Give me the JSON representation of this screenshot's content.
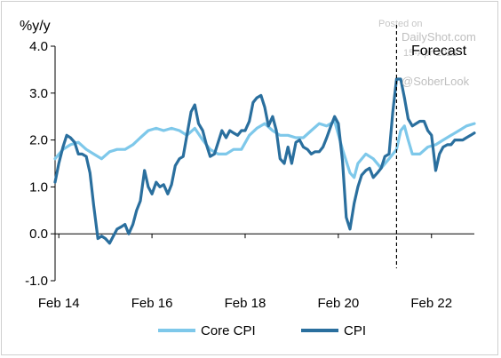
{
  "chart_data": {
    "type": "line",
    "ylabel": "%y/y",
    "ylim": [
      -1.0,
      4.0
    ],
    "yticks": [
      "4.0",
      "3.0",
      "2.0",
      "1.0",
      "0.0",
      "-1.0"
    ],
    "xlim": [
      2014.0,
      2023.0
    ],
    "xticks": [
      {
        "label": "Feb 14",
        "x": 2014.08
      },
      {
        "label": "Feb 16",
        "x": 2016.08
      },
      {
        "label": "Feb 18",
        "x": 2018.08
      },
      {
        "label": "Feb 20",
        "x": 2020.08
      },
      {
        "label": "Feb 22",
        "x": 2022.08
      }
    ],
    "forecast_start": 2021.33,
    "annotations": {
      "forecast": "Forecast",
      "watermark_line1": "Posted on",
      "watermark_line2": "DailyShot.com",
      "watermark_line3": "15-Apr-2021",
      "watermark_line4": "@SoberLook"
    },
    "colors": {
      "core_cpi": "#7ec8ea",
      "cpi": "#2a6f9e",
      "axis": "#000000"
    },
    "series": [
      {
        "name": "Core CPI",
        "x": [
          2014.0,
          2014.17,
          2014.33,
          2014.5,
          2014.67,
          2014.83,
          2015.0,
          2015.17,
          2015.33,
          2015.5,
          2015.67,
          2015.83,
          2016.0,
          2016.17,
          2016.33,
          2016.5,
          2016.67,
          2016.83,
          2017.0,
          2017.17,
          2017.33,
          2017.5,
          2017.67,
          2017.83,
          2018.0,
          2018.17,
          2018.33,
          2018.5,
          2018.67,
          2018.83,
          2019.0,
          2019.17,
          2019.33,
          2019.5,
          2019.67,
          2019.83,
          2020.0,
          2020.17,
          2020.33,
          2020.42,
          2020.5,
          2020.67,
          2020.83,
          2021.0,
          2021.17,
          2021.33,
          2021.42,
          2021.5,
          2021.58,
          2021.67,
          2021.83,
          2022.0,
          2022.17,
          2022.33,
          2022.5,
          2022.67,
          2022.83,
          2023.0
        ],
        "values": [
          1.6,
          1.8,
          1.9,
          1.95,
          1.8,
          1.7,
          1.6,
          1.75,
          1.8,
          1.8,
          1.9,
          2.05,
          2.2,
          2.25,
          2.2,
          2.25,
          2.2,
          2.1,
          2.25,
          2.0,
          1.8,
          1.7,
          1.7,
          1.8,
          1.8,
          2.1,
          2.25,
          2.35,
          2.2,
          2.1,
          2.1,
          2.05,
          2.05,
          2.2,
          2.35,
          2.3,
          2.4,
          1.8,
          1.3,
          1.2,
          1.5,
          1.7,
          1.6,
          1.4,
          1.6,
          1.8,
          2.2,
          2.3,
          2.0,
          1.7,
          1.7,
          1.85,
          1.9,
          2.0,
          2.1,
          2.2,
          2.3,
          2.35
        ]
      },
      {
        "name": "CPI",
        "x": [
          2014.0,
          2014.08,
          2014.17,
          2014.25,
          2014.33,
          2014.42,
          2014.5,
          2014.58,
          2014.67,
          2014.75,
          2014.83,
          2014.92,
          2015.0,
          2015.08,
          2015.17,
          2015.25,
          2015.33,
          2015.42,
          2015.5,
          2015.58,
          2015.67,
          2015.75,
          2015.83,
          2015.92,
          2016.0,
          2016.08,
          2016.17,
          2016.25,
          2016.33,
          2016.42,
          2016.5,
          2016.58,
          2016.67,
          2016.75,
          2016.83,
          2016.92,
          2017.0,
          2017.08,
          2017.17,
          2017.25,
          2017.33,
          2017.42,
          2017.5,
          2017.58,
          2017.67,
          2017.75,
          2017.83,
          2017.92,
          2018.0,
          2018.08,
          2018.17,
          2018.25,
          2018.33,
          2018.42,
          2018.5,
          2018.58,
          2018.67,
          2018.75,
          2018.83,
          2018.92,
          2019.0,
          2019.08,
          2019.17,
          2019.25,
          2019.33,
          2019.42,
          2019.5,
          2019.58,
          2019.67,
          2019.75,
          2019.83,
          2019.92,
          2020.0,
          2020.08,
          2020.17,
          2020.25,
          2020.33,
          2020.42,
          2020.5,
          2020.58,
          2020.67,
          2020.75,
          2020.83,
          2020.92,
          2021.0,
          2021.08,
          2021.17,
          2021.25,
          2021.33,
          2021.42,
          2021.5,
          2021.58,
          2021.67,
          2021.75,
          2021.83,
          2021.92,
          2022.0,
          2022.08,
          2022.17,
          2022.25,
          2022.33,
          2022.42,
          2022.5,
          2022.58,
          2022.67,
          2022.75,
          2022.83,
          2022.92,
          2023.0
        ],
        "values": [
          1.1,
          1.5,
          1.85,
          2.1,
          2.05,
          1.95,
          1.7,
          1.7,
          1.65,
          1.3,
          0.6,
          -0.1,
          -0.05,
          -0.1,
          -0.2,
          -0.05,
          0.1,
          0.15,
          0.2,
          0.0,
          0.2,
          0.5,
          0.7,
          1.35,
          1.0,
          0.85,
          1.1,
          1.0,
          1.05,
          0.85,
          1.05,
          1.45,
          1.6,
          1.65,
          2.1,
          2.6,
          2.75,
          2.35,
          2.2,
          1.9,
          1.65,
          1.7,
          1.95,
          2.2,
          2.05,
          2.2,
          2.15,
          2.1,
          2.2,
          2.2,
          2.4,
          2.8,
          2.9,
          2.95,
          2.7,
          2.3,
          2.5,
          2.2,
          1.6,
          1.5,
          1.85,
          1.5,
          1.95,
          2.0,
          1.85,
          1.8,
          1.7,
          1.75,
          1.75,
          1.85,
          2.05,
          2.3,
          2.5,
          2.35,
          1.55,
          0.35,
          0.1,
          0.65,
          1.0,
          1.25,
          1.35,
          1.4,
          1.2,
          1.3,
          1.4,
          1.65,
          1.7,
          2.6,
          3.3,
          3.3,
          2.9,
          2.45,
          2.3,
          2.35,
          2.4,
          2.4,
          2.2,
          2.1,
          1.35,
          1.7,
          1.85,
          1.9,
          1.9,
          2.0,
          2.0,
          2.0,
          2.05,
          2.1,
          2.15
        ]
      }
    ],
    "legend": {
      "placement": "bottom"
    }
  }
}
